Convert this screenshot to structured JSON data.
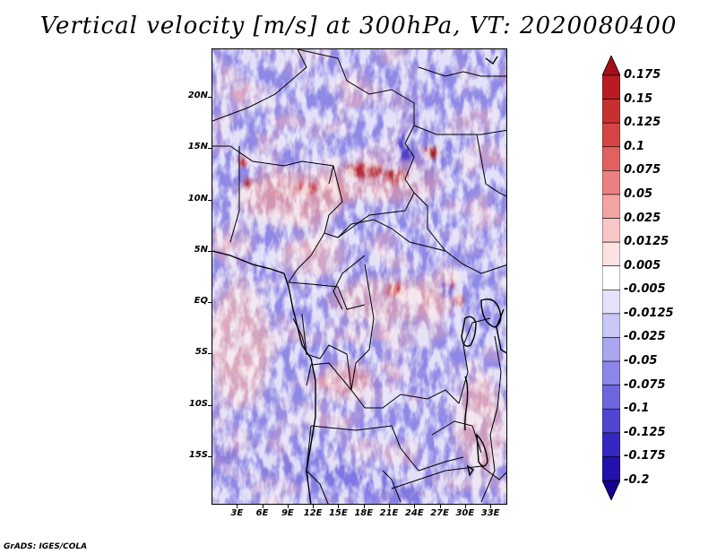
{
  "title": "Vertical velocity [m/s] at 300hPa, VT: 2020080400",
  "credit": "GrADS: IGES/COLA",
  "map": {
    "lat_labels": [
      "20N",
      "15N",
      "10N",
      "5N",
      "EQ",
      "5S",
      "10S",
      "15S"
    ],
    "lon_labels": [
      "3E",
      "6E",
      "9E",
      "12E",
      "15E",
      "18E",
      "21E",
      "24E",
      "27E",
      "30E",
      "33E"
    ],
    "lat_values": [
      20,
      15,
      10,
      5,
      0,
      -5,
      -10,
      -15
    ],
    "lon_values": [
      3,
      6,
      9,
      12,
      15,
      18,
      21,
      24,
      27,
      30,
      33
    ],
    "lon_range": [
      0,
      35
    ],
    "lat_range": [
      -19.7,
      24.7
    ]
  },
  "colorbar": {
    "labels": [
      "0.175",
      "0.15",
      "0.125",
      "0.1",
      "0.075",
      "0.05",
      "0.025",
      "0.0125",
      "0.005",
      "-0.005",
      "-0.0125",
      "-0.025",
      "-0.05",
      "-0.075",
      "-0.1",
      "-0.125",
      "-0.175",
      "-0.2"
    ],
    "colors": [
      "#a50f15",
      "#b81c22",
      "#c83030",
      "#d64545",
      "#e36060",
      "#ec8080",
      "#f3a3a3",
      "#f8c6c6",
      "#fce2e2",
      "#ffffff",
      "#e4e3fb",
      "#c9c7f6",
      "#aaa6ef",
      "#8c86e8",
      "#6e66de",
      "#5046d2",
      "#3727c2",
      "#2311ad",
      "#14008f"
    ]
  }
}
